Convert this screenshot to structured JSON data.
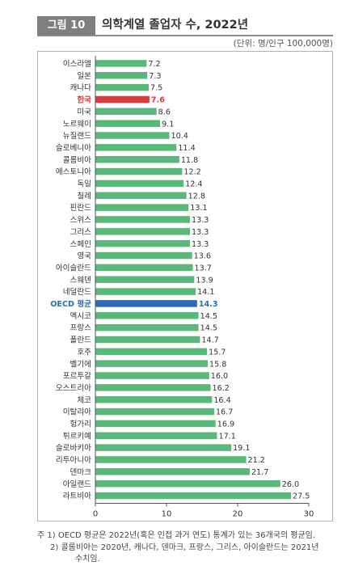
{
  "figure_label": "그림 10",
  "title": "의학계열 졸업자 수, 2022년",
  "unit": "(단위: 명/인구 100,000명)",
  "notes": {
    "line1": "주 1) OECD 평균은 2022년(혹은 인접 과거 연도) 통계가 있는 36개국의 평균임.",
    "line2": "2) 콜롬비아는 2020년, 캐나다, 덴마크, 프랑스, 그리스, 아이슬란드는 2021년",
    "line3": "수치임."
  },
  "colors": {
    "bar": "#5cb87a",
    "highlight_korea": "#d93a3c",
    "highlight_oecd": "#2e6bb8",
    "axis": "#555555"
  },
  "chart_data": {
    "type": "bar",
    "orientation": "horizontal",
    "categories": [
      "이스라엘",
      "일본",
      "캐나다",
      "한국",
      "미국",
      "노르웨이",
      "뉴질랜드",
      "슬로베니아",
      "콜롬비아",
      "에스토니아",
      "독일",
      "칠레",
      "핀란드",
      "스위스",
      "그리스",
      "스페인",
      "영국",
      "아이슬란드",
      "스웨덴",
      "네덜란드",
      "OECD 평균",
      "멕시코",
      "프랑스",
      "폴란드",
      "호주",
      "벨기에",
      "포르투갈",
      "오스트리아",
      "체코",
      "이탈리아",
      "헝가리",
      "튀르키예",
      "슬로바키아",
      "리투아니아",
      "덴마크",
      "아일랜드",
      "라트비아"
    ],
    "values": [
      7.2,
      7.3,
      7.5,
      7.6,
      8.6,
      9.1,
      10.4,
      11.4,
      11.8,
      12.2,
      12.4,
      12.8,
      13.1,
      13.3,
      13.3,
      13.3,
      13.6,
      13.7,
      13.9,
      14.1,
      14.3,
      14.5,
      14.5,
      14.7,
      15.7,
      15.8,
      16.0,
      16.2,
      16.4,
      16.7,
      16.9,
      17.1,
      19.1,
      21.2,
      21.7,
      26.0,
      27.5
    ],
    "highlight": {
      "한국": "korea",
      "OECD 평균": "oecd"
    },
    "xlim": [
      0,
      30
    ],
    "xticks": [
      0,
      10,
      20,
      30
    ],
    "grid": false,
    "legend": "none"
  }
}
